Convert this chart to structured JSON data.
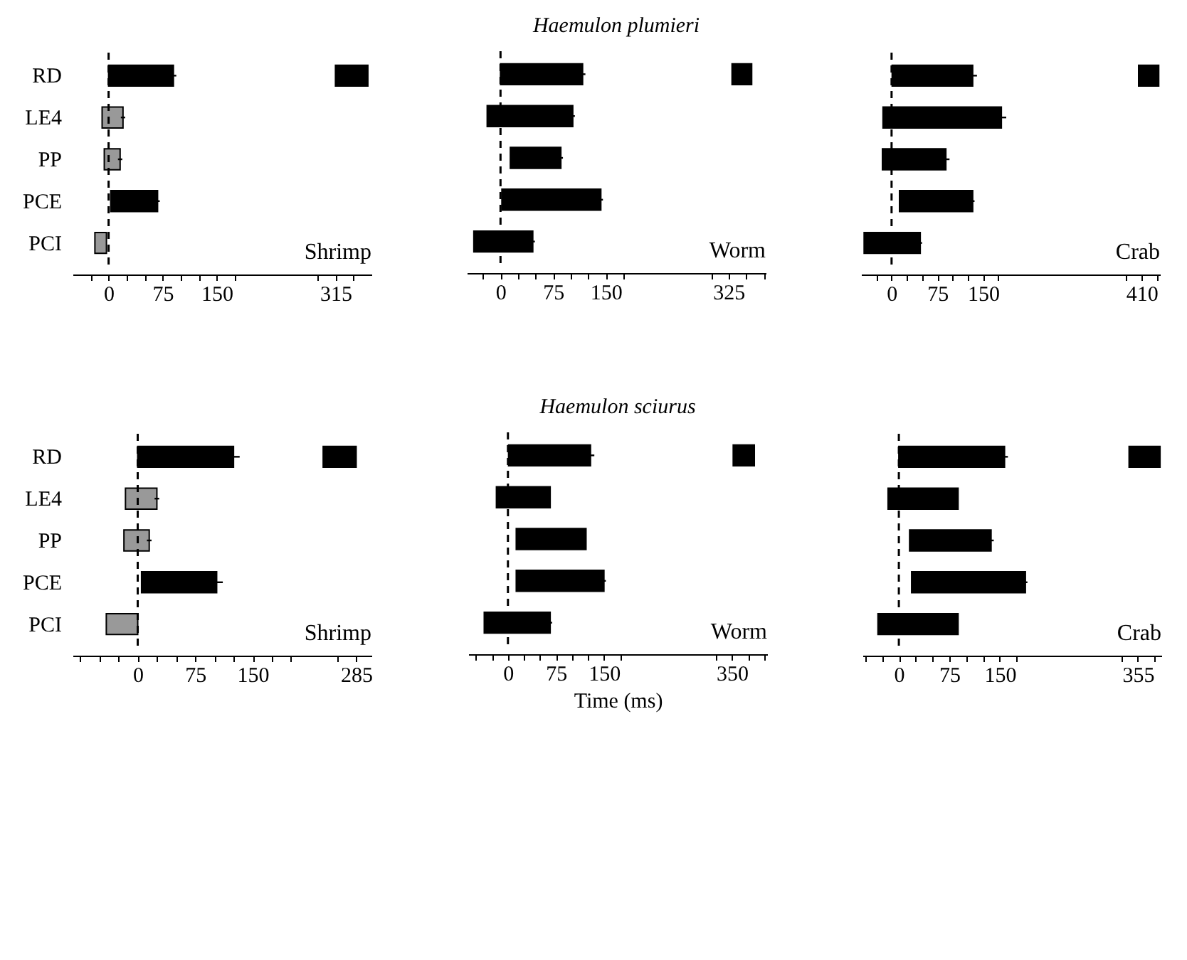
{
  "chart_data": [
    {
      "type": "bar",
      "orientation": "horizontal",
      "categories": [
        "RD",
        "LE4",
        "PP",
        "PCE",
        "PCI"
      ],
      "annotations": [
        "Shrimp"
      ],
      "xlim": [
        -50,
        365
      ],
      "xticks": [
        {
          "value": -25,
          "label": null
        },
        0,
        {
          "value": 25,
          "label": null
        },
        {
          "value": 50,
          "label": null
        },
        75,
        {
          "value": 100,
          "label": null
        },
        {
          "value": 125,
          "label": null
        },
        150,
        {
          "value": 175,
          "label": null
        },
        {
          "value": 290,
          "label": null
        },
        315,
        {
          "value": 340,
          "label": null
        }
      ],
      "ref_lines": [
        {
          "axis": "x",
          "value": 0,
          "label": null,
          "color": "#000000",
          "line_style": "dashed"
        }
      ],
      "grid": false,
      "series": [
        {
          "color": "#000000",
          "colors": [
            "#000000",
            "#999999",
            "#999999",
            "#000000",
            "#999999"
          ],
          "base": [
            0,
            -9,
            -6,
            3,
            -19
          ],
          "values": [
            90,
            29,
            22,
            65,
            16
          ],
          "errors": [
            4,
            3,
            3,
            3,
            null
          ]
        },
        {
          "color": "#000000",
          "base": [
            315,
            null,
            null,
            null,
            null
          ],
          "values": [
            45,
            null,
            null,
            null,
            null
          ]
        }
      ]
    },
    {
      "type": "bar",
      "orientation": "horizontal",
      "title": "Haemulon plumieri",
      "categories": [
        null,
        null,
        null,
        null,
        null
      ],
      "annotations": [
        "Worm"
      ],
      "tick_labels": "x",
      "xlim": [
        -48,
        378
      ],
      "xticks": [
        {
          "value": -25,
          "label": null
        },
        0,
        {
          "value": 25,
          "label": null
        },
        {
          "value": 50,
          "label": null
        },
        75,
        {
          "value": 100,
          "label": null
        },
        {
          "value": 125,
          "label": null
        },
        150,
        {
          "value": 175,
          "label": null
        },
        {
          "value": 300,
          "label": null
        },
        325,
        {
          "value": 350,
          "label": null
        },
        {
          "value": 375,
          "label": null
        }
      ],
      "ref_lines": [
        {
          "axis": "x",
          "value": 0,
          "label": null,
          "color": "#000000",
          "line_style": "dashed"
        }
      ],
      "grid": false,
      "series": [
        {
          "color": "#000000",
          "base": [
            0,
            -19,
            14,
            2,
            -38
          ],
          "values": [
            117,
            122,
            72,
            141,
            84
          ],
          "errors": [
            4,
            3,
            3,
            3,
            3
          ]
        },
        {
          "color": "#000000",
          "base": [
            330,
            null,
            null,
            null,
            null
          ],
          "values": [
            28,
            null,
            null,
            null,
            null
          ]
        }
      ]
    },
    {
      "type": "bar",
      "orientation": "horizontal",
      "categories": [
        null,
        null,
        null,
        null,
        null
      ],
      "annotations": [
        "Crab"
      ],
      "tick_labels": "x",
      "xlim": [
        -50,
        440
      ],
      "xticks": [
        {
          "value": -25,
          "label": null
        },
        0,
        {
          "value": 25,
          "label": null
        },
        {
          "value": 50,
          "label": null
        },
        75,
        {
          "value": 100,
          "label": null
        },
        {
          "value": 125,
          "label": null
        },
        150,
        {
          "value": 175,
          "label": null
        },
        {
          "value": 385,
          "label": null
        },
        410,
        {
          "value": 435,
          "label": null
        }
      ],
      "ref_lines": [
        {
          "axis": "x",
          "value": 0,
          "label": null,
          "color": "#000000",
          "line_style": "dashed"
        }
      ],
      "grid": false,
      "series": [
        {
          "color": "#000000",
          "base": [
            1,
            -14,
            -15,
            13,
            -45
          ],
          "values": [
            132,
            194,
            104,
            120,
            92
          ],
          "errors": [
            7,
            8,
            6,
            3,
            3
          ]
        },
        {
          "color": "#000000",
          "base": [
            405,
            null,
            null,
            null,
            null
          ],
          "values": [
            33,
            null,
            null,
            null,
            null
          ]
        }
      ]
    },
    {
      "type": "bar",
      "orientation": "horizontal",
      "categories": [
        "RD",
        "LE4",
        "PP",
        "PCE",
        "PCI"
      ],
      "annotations": [
        "Shrimp"
      ],
      "xlim": [
        -85,
        305
      ],
      "xticks": [
        {
          "value": -75,
          "label": null
        },
        {
          "value": -50,
          "label": null
        },
        {
          "value": -25,
          "label": null
        },
        0,
        {
          "value": 25,
          "label": null
        },
        {
          "value": 50,
          "label": null
        },
        75,
        {
          "value": 100,
          "label": null
        },
        {
          "value": 125,
          "label": null
        },
        150,
        {
          "value": 175,
          "label": null
        },
        {
          "value": 200,
          "label": null
        },
        {
          "value": 260,
          "label": null
        },
        285
      ],
      "ref_lines": [
        {
          "axis": "x",
          "value": 0,
          "label": null,
          "color": "#000000",
          "line_style": "dashed"
        }
      ],
      "grid": false,
      "series": [
        {
          "color": "#000000",
          "colors": [
            "#000000",
            "#999999",
            "#999999",
            "#000000",
            "#999999"
          ],
          "base": [
            0,
            -16,
            -18,
            5,
            -41
          ],
          "values": [
            125,
            41,
            33,
            98,
            41
          ],
          "errors": [
            8,
            3,
            3,
            8,
            null
          ]
        },
        {
          "color": "#000000",
          "base": [
            242,
            null,
            null,
            null,
            null
          ],
          "values": [
            43,
            null,
            null,
            null,
            null
          ]
        }
      ]
    },
    {
      "type": "bar",
      "orientation": "horizontal",
      "title": "Haemulon sciurus",
      "xlabel": "Time (ms)",
      "categories": [
        null,
        null,
        null,
        null,
        null
      ],
      "annotations": [
        "Worm"
      ],
      "tick_labels": "x",
      "xlim": [
        -62,
        405
      ],
      "xticks": [
        {
          "value": -50,
          "label": null
        },
        {
          "value": -25,
          "label": null
        },
        0,
        {
          "value": 25,
          "label": null
        },
        {
          "value": 50,
          "label": null
        },
        75,
        {
          "value": 100,
          "label": null
        },
        {
          "value": 125,
          "label": null
        },
        150,
        {
          "value": 175,
          "label": null
        },
        {
          "value": 325,
          "label": null
        },
        350,
        {
          "value": 375,
          "label": null
        },
        {
          "value": 400,
          "label": null
        }
      ],
      "ref_lines": [
        {
          "axis": "x",
          "value": 0,
          "label": null,
          "color": "#000000",
          "line_style": "dashed"
        }
      ],
      "grid": false,
      "series": [
        {
          "color": "#000000",
          "base": [
            1,
            -18,
            13,
            13,
            -37
          ],
          "values": [
            128,
            84,
            109,
            137,
            103
          ],
          "errors": [
            6,
            null,
            null,
            3,
            3
          ]
        },
        {
          "color": "#000000",
          "base": [
            352,
            null,
            null,
            null,
            null
          ],
          "values": [
            33,
            null,
            null,
            null,
            null
          ]
        }
      ]
    },
    {
      "type": "bar",
      "orientation": "horizontal",
      "categories": [
        null,
        null,
        null,
        null,
        null
      ],
      "annotations": [
        "Crab"
      ],
      "tick_labels": "x",
      "xlim": [
        -54,
        390
      ],
      "xticks": [
        {
          "value": -50,
          "label": null
        },
        {
          "value": -25,
          "label": null
        },
        0,
        {
          "value": 25,
          "label": null
        },
        {
          "value": 50,
          "label": null
        },
        75,
        {
          "value": 100,
          "label": null
        },
        {
          "value": 125,
          "label": null
        },
        150,
        {
          "value": 175,
          "label": null
        },
        {
          "value": 330,
          "label": null
        },
        355,
        {
          "value": 380,
          "label": null
        }
      ],
      "ref_lines": [
        {
          "axis": "x",
          "value": 0,
          "label": null,
          "color": "#000000",
          "line_style": "dashed"
        }
      ],
      "grid": false,
      "series": [
        {
          "color": "#000000",
          "base": [
            0,
            -16,
            16,
            19,
            -31
          ],
          "values": [
            157,
            104,
            121,
            169,
            119
          ],
          "errors": [
            5,
            null,
            4,
            3,
            null
          ]
        },
        {
          "color": "#000000",
          "base": [
            342,
            null,
            null,
            null,
            null
          ],
          "values": [
            46,
            null,
            null,
            null,
            null
          ]
        }
      ]
    }
  ]
}
